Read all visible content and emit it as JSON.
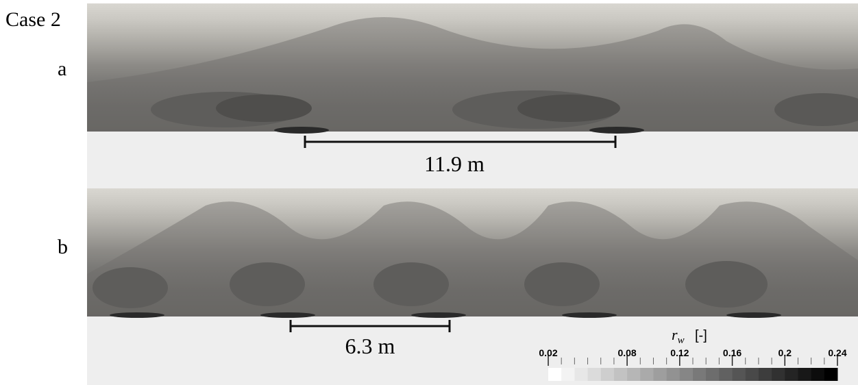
{
  "case_label": "Case 2",
  "panels": [
    {
      "label": "a",
      "scale_bar": "11.9 m"
    },
    {
      "label": "b",
      "scale_bar": "6.3 m"
    }
  ],
  "colorbar": {
    "symbol": "r",
    "subscript": "w",
    "unit": "[-]",
    "range": [
      0.02,
      0.24
    ],
    "ticks": [
      0.02,
      0.08,
      0.12,
      0.16,
      0.2,
      0.24
    ]
  }
}
